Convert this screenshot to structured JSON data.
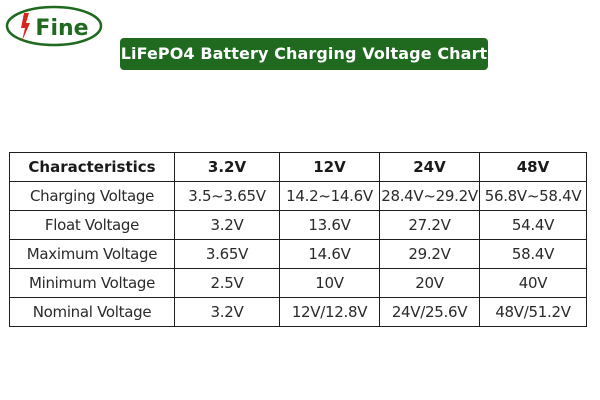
{
  "brand": {
    "logo_text": "UFine",
    "colors": {
      "primary": "#1f6a1f",
      "logo_red": "#d9261c"
    }
  },
  "title": "LiFePO4 Battery Charging Voltage Chart",
  "table": {
    "headers": [
      "Characteristics",
      "3.2V",
      "12V",
      "24V",
      "48V"
    ],
    "rows": [
      [
        "Charging Voltage",
        "3.5~3.65V",
        "14.2~14.6V",
        "28.4V~29.2V",
        "56.8V~58.4V"
      ],
      [
        "Float Voltage",
        "3.2V",
        "13.6V",
        "27.2V",
        "54.4V"
      ],
      [
        "Maximum Voltage",
        "3.65V",
        "14.6V",
        "29.2V",
        "58.4V"
      ],
      [
        "Minimum Voltage",
        "2.5V",
        "10V",
        "20V",
        "40V"
      ],
      [
        "Nominal Voltage",
        "3.2V",
        "12V/12.8V",
        "24V/25.6V",
        "48V/51.2V"
      ]
    ]
  }
}
